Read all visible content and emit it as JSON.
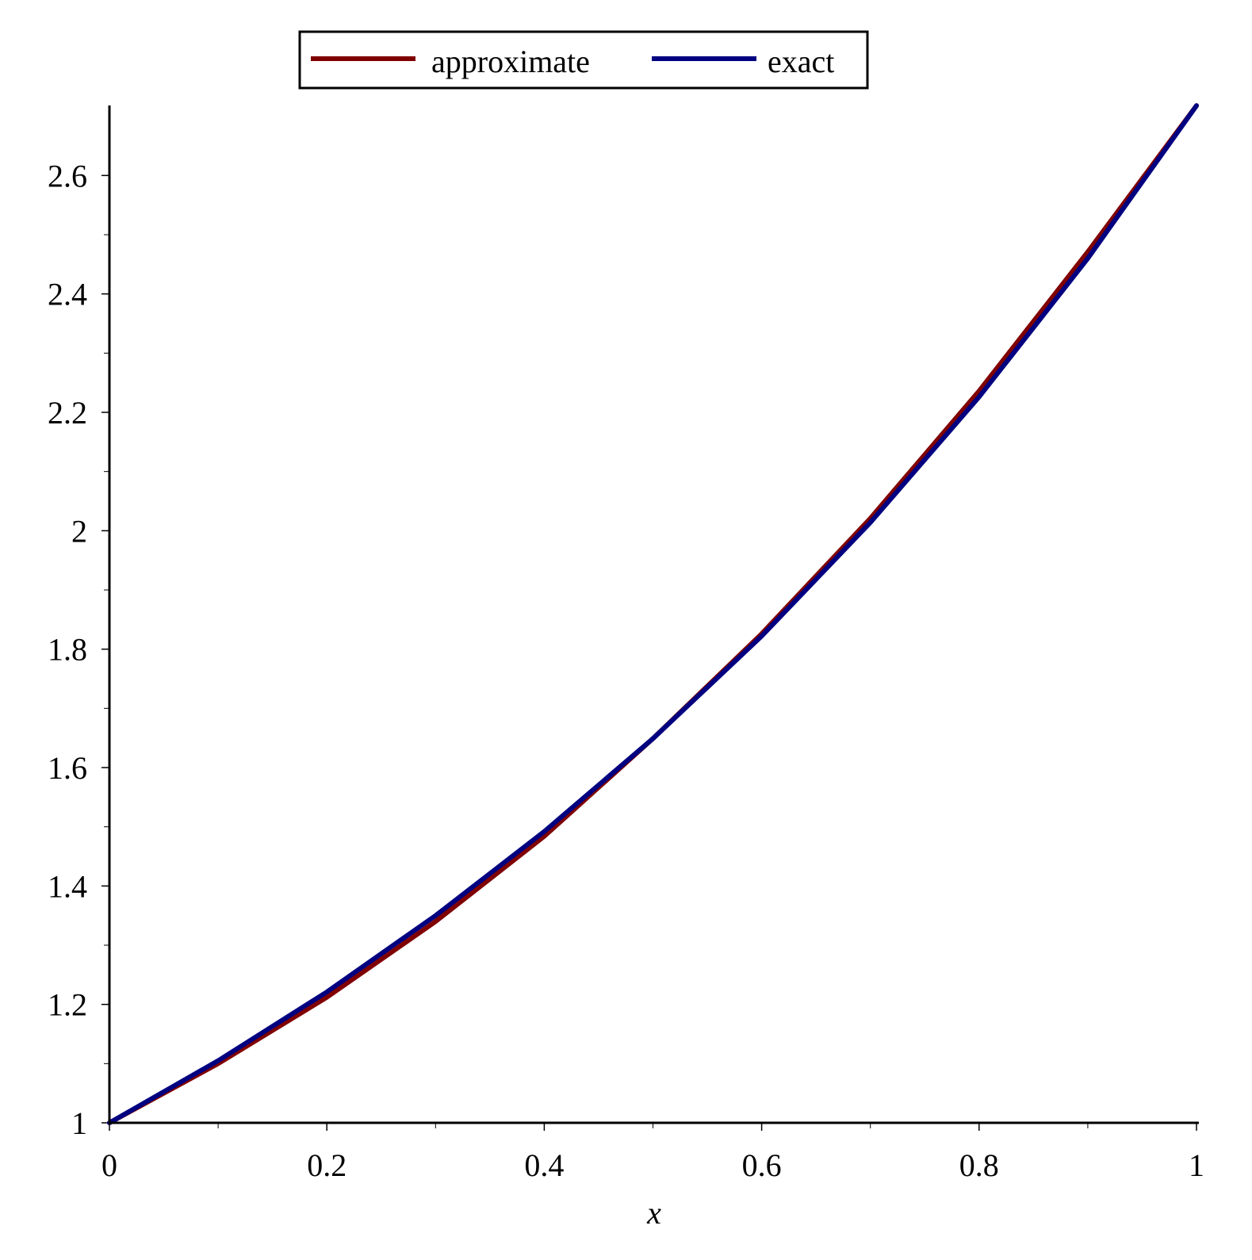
{
  "chart_data": {
    "type": "line",
    "title": "",
    "xlabel": "x",
    "ylabel": "",
    "xlim": [
      0,
      1
    ],
    "ylim": [
      1,
      2.71828
    ],
    "grid": false,
    "legend_position": "top-center",
    "x_ticks": [
      "0",
      "0.2",
      "0.4",
      "0.6",
      "0.8",
      "1"
    ],
    "y_ticks": [
      "1",
      "1.2",
      "1.4",
      "1.6",
      "1.8",
      "2",
      "2.2",
      "2.4",
      "2.6"
    ],
    "x": [
      0,
      0.1,
      0.2,
      0.3,
      0.4,
      0.5,
      0.6,
      0.7,
      0.8,
      0.9,
      1.0
    ],
    "series": [
      {
        "name": "approximate",
        "color": "#800000",
        "values": [
          1.0,
          1.1,
          1.212,
          1.34,
          1.484,
          1.649,
          1.826,
          2.021,
          2.236,
          2.471,
          2.718
        ]
      },
      {
        "name": "exact",
        "color": "#000080",
        "values": [
          1.0,
          1.105,
          1.221,
          1.35,
          1.492,
          1.649,
          1.822,
          2.014,
          2.226,
          2.46,
          2.718
        ]
      }
    ]
  }
}
